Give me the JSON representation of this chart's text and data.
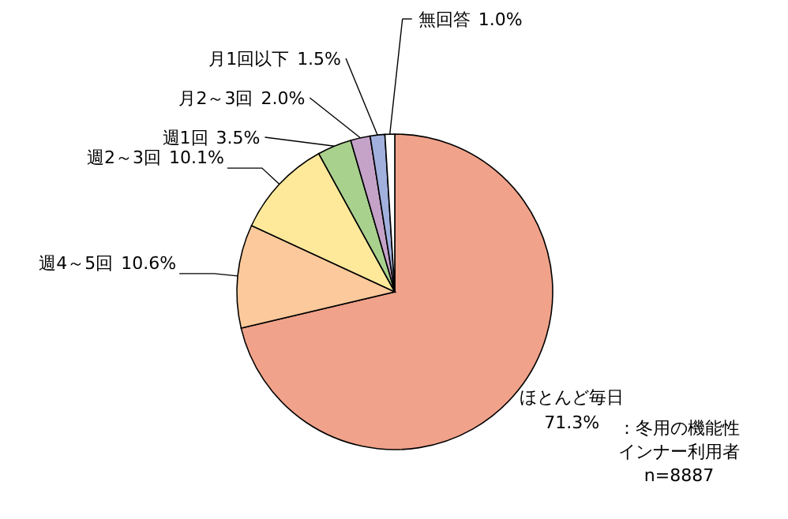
{
  "chart_data": {
    "type": "pie",
    "categories": [
      "ほとんど毎日",
      "週4～5回",
      "週2～3回",
      "週1回",
      "月2～3回",
      "月1回以下",
      "無回答"
    ],
    "values": [
      71.3,
      10.6,
      10.1,
      3.5,
      2.0,
      1.5,
      1.0
    ],
    "colors": [
      "#f0a28a",
      "#fbc99b",
      "#fee99b",
      "#a9d18e",
      "#c5a3c9",
      "#a2b0de",
      "#ffffff"
    ],
    "value_labels": [
      "71.3%",
      "10.6%",
      "10.1%",
      "3.5%",
      "2.0%",
      "1.5%",
      "1.0%"
    ],
    "annotations": [
      "：冬用の機能性",
      "インナー利用者",
      "n=8887"
    ]
  }
}
